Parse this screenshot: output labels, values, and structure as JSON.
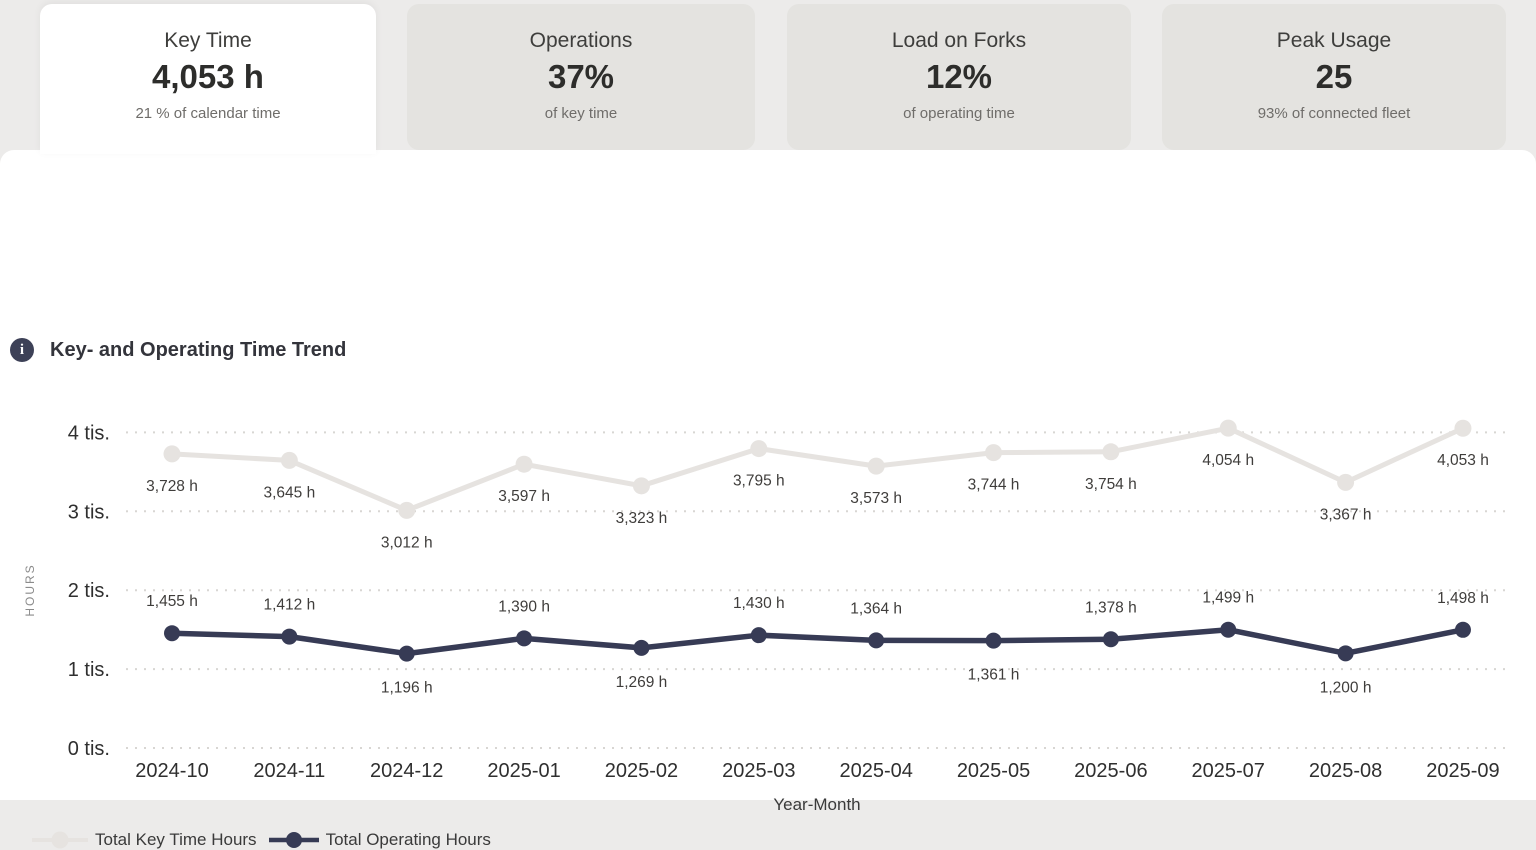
{
  "tabs": [
    {
      "label": "Key Time",
      "value": "4,053 h",
      "subtitle": "21 % of calendar time",
      "active": true
    },
    {
      "label": "Operations",
      "value": "37%",
      "subtitle": "of key time",
      "active": false
    },
    {
      "label": "Load on Forks",
      "value": "12%",
      "subtitle": "of operating time",
      "active": false
    },
    {
      "label": "Peak Usage",
      "value": "25",
      "subtitle": "93% of connected fleet",
      "active": false
    }
  ],
  "panel": {
    "title": "Key- and Operating Time Trend",
    "info_icon": "i"
  },
  "chart_data": {
    "type": "line",
    "title": "Key- and Operating Time Trend",
    "x": [
      "2024-10",
      "2024-11",
      "2024-12",
      "2025-01",
      "2025-02",
      "2025-03",
      "2025-04",
      "2025-05",
      "2025-06",
      "2025-07",
      "2025-08",
      "2025-09"
    ],
    "series": [
      {
        "name": "Total Key Time Hours",
        "color": "#E6E3E0",
        "values": [
          3728,
          3645,
          3012,
          3597,
          3323,
          3795,
          3573,
          3744,
          3754,
          4054,
          3367,
          4053
        ],
        "labels": [
          "3,728 h",
          "3,645 h",
          "3,012 h",
          "3,597 h",
          "3,323 h",
          "3,795 h",
          "3,573 h",
          "3,744 h",
          "3,754 h",
          "4,054 h",
          "3,367 h",
          "4,053 h"
        ],
        "label_side": [
          "below",
          "below",
          "below",
          "below",
          "below",
          "below",
          "below",
          "below",
          "below",
          "below",
          "below",
          "below"
        ]
      },
      {
        "name": "Total Operating Hours",
        "color": "#373B55",
        "values": [
          1455,
          1412,
          1196,
          1390,
          1269,
          1430,
          1364,
          1361,
          1378,
          1499,
          1200,
          1498
        ],
        "labels": [
          "1,455 h",
          "1,412 h",
          "1,196 h",
          "1,390 h",
          "1,269 h",
          "1,430 h",
          "1,364 h",
          "1,361 h",
          "1,378 h",
          "1,499 h",
          "1,200 h",
          "1,498 h"
        ],
        "label_side": [
          "above",
          "above",
          "below",
          "above",
          "below",
          "above",
          "above",
          "below",
          "above",
          "above",
          "below",
          "above"
        ]
      }
    ],
    "xlabel": "Year-Month",
    "ylabel": "HOURS",
    "yticks": [
      {
        "v": 0,
        "label": "0 tis."
      },
      {
        "v": 1000,
        "label": "1 tis."
      },
      {
        "v": 2000,
        "label": "2 tis."
      },
      {
        "v": 3000,
        "label": "3 tis."
      },
      {
        "v": 4000,
        "label": "4 tis."
      }
    ],
    "ylim": [
      0,
      4400
    ],
    "grid": "dotted-horizontal",
    "legend_position": "bottom-left"
  },
  "colors": {
    "page_background": "#ECEBEA",
    "inactive_tab": "#E4E3E0",
    "active_tab": "#FFFFFF",
    "panel": "#FFFFFF",
    "accent_navy": "#373B55",
    "key_time_gray": "#E6E3E0",
    "gridline": "#D8D6D3"
  }
}
